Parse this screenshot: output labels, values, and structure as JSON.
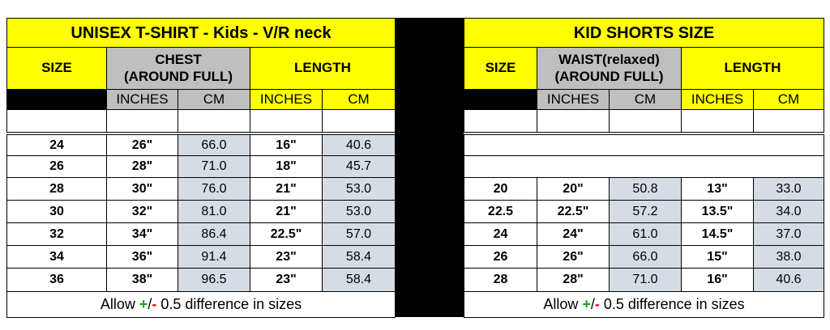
{
  "tables": [
    {
      "title": "UNISEX T-SHIRT - Kids - V/R neck",
      "headers": {
        "size": "SIZE",
        "measure": [
          "CHEST",
          "(AROUND FULL)"
        ],
        "length": "LENGTH"
      },
      "units": [
        "INCHES",
        "CM",
        "INCHES",
        "CM"
      ],
      "rows": [
        [
          "24",
          "26\"",
          "66.0",
          "16\"",
          "40.6"
        ],
        [
          "26",
          "28\"",
          "71.0",
          "18\"",
          "45.7"
        ],
        [
          "28",
          "30\"",
          "76.0",
          "21\"",
          "53.0"
        ],
        [
          "30",
          "32\"",
          "81.0",
          "21\"",
          "53.0"
        ],
        [
          "32",
          "34\"",
          "86.4",
          "22.5\"",
          "57.0"
        ],
        [
          "34",
          "36\"",
          "91.4",
          "23\"",
          "58.4"
        ],
        [
          "36",
          "38\"",
          "96.5",
          "23\"",
          "58.4"
        ]
      ],
      "note": {
        "prefix": "Allow",
        "plus": "+",
        "slash": "/",
        "minus": "-",
        "suffix": "0.5 difference in sizes"
      }
    },
    {
      "title": "KID SHORTS SIZE",
      "headers": {
        "size": "SIZE",
        "measure": [
          "WAIST(relaxed)",
          "(AROUND FULL)"
        ],
        "length": "LENGTH"
      },
      "units": [
        "INCHES",
        "CM",
        "INCHES",
        "CM"
      ],
      "rows": [
        [
          "20",
          "20\"",
          "50.8",
          "13\"",
          "33.0"
        ],
        [
          "22.5",
          "22.5\"",
          "57.2",
          "13.5\"",
          "34.0"
        ],
        [
          "24",
          "24\"",
          "61.0",
          "14.5\"",
          "37.0"
        ],
        [
          "26",
          "26\"",
          "66.0",
          "15\"",
          "38.0"
        ],
        [
          "28",
          "28\"",
          "71.0",
          "16\"",
          "40.6"
        ]
      ],
      "note": {
        "prefix": "Allow",
        "plus": "+",
        "slash": "/",
        "minus": "-",
        "suffix": "0.5 difference in sizes"
      }
    }
  ]
}
